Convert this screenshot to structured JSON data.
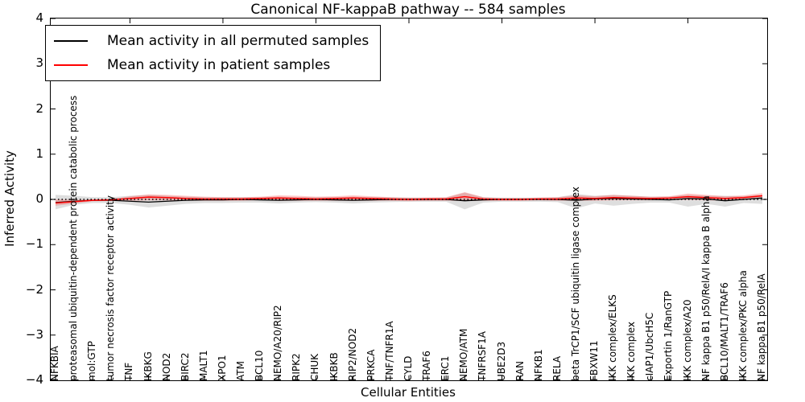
{
  "chart_data": {
    "type": "line",
    "title": "Canonical NF-kappaB pathway -- 584 samples",
    "xlabel": "Cellular Entities",
    "ylabel": "Inferred Activity",
    "ylim": [
      -4,
      4
    ],
    "yticks": [
      -4,
      -3,
      -2,
      -1,
      0,
      1,
      2,
      3,
      4
    ],
    "grid": false,
    "legend_position": "upper left",
    "zero_reference_line": {
      "style": "dotted",
      "color": "#000000",
      "y": 0
    },
    "top_axis_tick_positions": [
      5,
      10,
      15,
      20,
      25,
      30,
      35
    ],
    "categories": [
      "NFKBIA",
      "proteasomal ubiquitin-dependent protein catabolic process",
      "mol:GTP",
      "tumor necrosis factor receptor activity",
      "TNF",
      "IKBKG",
      "NOD2",
      "BIRC2",
      "MALT1",
      "XPO1",
      "ATM",
      "BCL10",
      "NEMO/A20/RIP2",
      "RIPK2",
      "CHUK",
      "IKBKB",
      "RIP2/NOD2",
      "PRKCA",
      "TNF/TNFR1A",
      "CYLD",
      "TRAF6",
      "ERC1",
      "NEMO/ATM",
      "TNFRSF1A",
      "UBE2D3",
      "RAN",
      "NFKB1",
      "RELA",
      "beta TrCP1/SCF ubiquitin ligase complex",
      "FBXW11",
      "IKK complex/ELKS",
      "IKK complex",
      "cIAP1/UbcH5C",
      "Exportin 1/RanGTP",
      "IKK complex/A20",
      "NF kappa B1 p50/RelA/I kappa B alpha",
      "BCL10/MALT1/TRAF6",
      "IKK complex/PKC alpha",
      "NF kappa B1 p50/RelA"
    ],
    "series": [
      {
        "name": "Mean activity in all permuted samples",
        "color": "#000000",
        "width": 1.3,
        "values": [
          -0.07,
          -0.04,
          -0.02,
          -0.02,
          -0.04,
          -0.06,
          -0.04,
          -0.02,
          -0.01,
          -0.01,
          0.0,
          -0.01,
          -0.02,
          -0.01,
          0.0,
          -0.01,
          -0.02,
          -0.01,
          0.0,
          0.0,
          0.0,
          0.0,
          -0.03,
          -0.01,
          0.0,
          0.0,
          0.0,
          0.0,
          -0.02,
          0.01,
          0.02,
          0.01,
          0.0,
          -0.01,
          0.02,
          0.01,
          -0.03,
          0.0,
          0.03
        ]
      },
      {
        "name": "Mean activity in patient samples",
        "color": "#ff0000",
        "width": 1.5,
        "values": [
          -0.08,
          -0.05,
          -0.02,
          -0.01,
          0.02,
          0.05,
          0.04,
          0.02,
          0.01,
          0.01,
          0.01,
          0.02,
          0.03,
          0.02,
          0.01,
          0.02,
          0.03,
          0.02,
          0.01,
          0.0,
          0.01,
          0.01,
          0.06,
          0.01,
          0.0,
          0.0,
          0.01,
          0.01,
          0.03,
          0.02,
          0.04,
          0.03,
          0.02,
          0.03,
          0.06,
          0.04,
          0.02,
          0.04,
          0.08
        ]
      }
    ],
    "bands": [
      {
        "name": "permuted-samples-range",
        "color": "rgba(0,0,0,0.13)",
        "upper": [
          0.1,
          0.08,
          0.05,
          0.05,
          0.08,
          0.1,
          0.08,
          0.06,
          0.05,
          0.05,
          0.05,
          0.05,
          0.06,
          0.05,
          0.05,
          0.05,
          0.06,
          0.05,
          0.05,
          0.04,
          0.04,
          0.04,
          0.15,
          0.05,
          0.04,
          0.04,
          0.04,
          0.05,
          0.12,
          0.08,
          0.1,
          0.08,
          0.06,
          0.06,
          0.1,
          0.08,
          0.08,
          0.07,
          0.1
        ],
        "lower": [
          -0.22,
          -0.12,
          -0.08,
          -0.08,
          -0.12,
          -0.18,
          -0.14,
          -0.1,
          -0.08,
          -0.08,
          -0.07,
          -0.07,
          -0.09,
          -0.07,
          -0.06,
          -0.07,
          -0.09,
          -0.07,
          -0.06,
          -0.05,
          -0.05,
          -0.05,
          -0.22,
          -0.07,
          -0.05,
          -0.05,
          -0.05,
          -0.06,
          -0.2,
          -0.09,
          -0.14,
          -0.1,
          -0.07,
          -0.07,
          -0.16,
          -0.1,
          -0.16,
          -0.08,
          -0.1
        ]
      },
      {
        "name": "patient-samples-range",
        "color": "rgba(255,0,0,0.22)",
        "upper": [
          0.0,
          -0.01,
          0.0,
          0.01,
          0.07,
          0.11,
          0.1,
          0.08,
          0.06,
          0.05,
          0.05,
          0.06,
          0.09,
          0.08,
          0.06,
          0.07,
          0.09,
          0.07,
          0.05,
          0.04,
          0.04,
          0.05,
          0.16,
          0.05,
          0.03,
          0.03,
          0.04,
          0.05,
          0.09,
          0.07,
          0.1,
          0.08,
          0.06,
          0.07,
          0.13,
          0.1,
          0.07,
          0.09,
          0.14
        ],
        "lower": [
          -0.14,
          -0.09,
          -0.04,
          -0.03,
          -0.03,
          -0.02,
          -0.02,
          -0.03,
          -0.03,
          -0.03,
          -0.03,
          -0.02,
          -0.03,
          -0.03,
          -0.03,
          -0.03,
          -0.03,
          -0.03,
          -0.03,
          -0.04,
          -0.03,
          -0.03,
          -0.03,
          -0.03,
          -0.03,
          -0.03,
          -0.02,
          -0.03,
          -0.03,
          -0.03,
          -0.02,
          -0.02,
          -0.02,
          -0.01,
          -0.01,
          -0.02,
          -0.03,
          -0.01,
          0.02
        ]
      }
    ]
  },
  "legend": {
    "entries": [
      {
        "label": "Mean activity in all permuted samples",
        "color": "#000000"
      },
      {
        "label": "Mean activity in patient samples",
        "color": "#ff0000"
      }
    ]
  }
}
